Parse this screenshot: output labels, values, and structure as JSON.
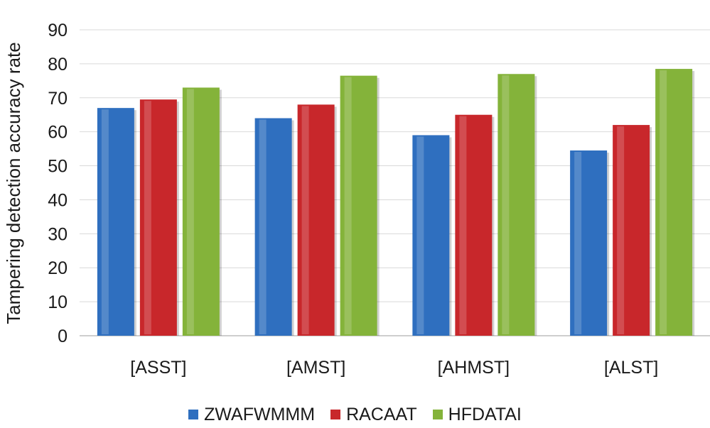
{
  "chart_data": {
    "type": "bar",
    "title": "",
    "xlabel": "",
    "ylabel": "Tampering detection accuracy rate",
    "categories": [
      "[ASST]",
      "[AMST]",
      "[AHMST]",
      "[ALST]"
    ],
    "series": [
      {
        "name": "ZWAFWMMM",
        "color": "#2f6fbf",
        "values": [
          67,
          64,
          59,
          54.5
        ]
      },
      {
        "name": "RACAAT",
        "color": "#c8272b",
        "values": [
          69.5,
          68,
          65,
          62
        ]
      },
      {
        "name": "HFDATAI",
        "color": "#84b33a",
        "values": [
          73,
          76.5,
          77,
          78.5
        ]
      }
    ],
    "ylim": [
      0,
      90
    ],
    "yticks": [
      0,
      10,
      20,
      30,
      40,
      50,
      60,
      70,
      80,
      90
    ],
    "grid": true,
    "legend_position": "bottom"
  }
}
